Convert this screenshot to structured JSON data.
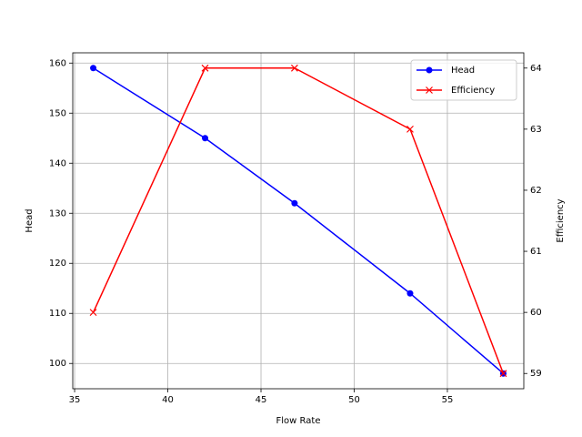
{
  "chart_data": {
    "type": "line",
    "xlabel": "Flow Rate",
    "ylabel": "Head",
    "y2label": "Efficiency",
    "x": [
      36,
      42,
      46.8,
      53,
      58
    ],
    "series": [
      {
        "name": "Head",
        "color": "#0000ff",
        "marker": "o",
        "values": [
          159,
          145,
          132,
          114,
          98
        ]
      },
      {
        "name": "Efficiency",
        "color": "#ff0000",
        "marker": "x",
        "axis": "y2",
        "values": [
          60,
          64,
          64,
          63,
          59
        ]
      }
    ],
    "xlim": [
      34.9,
      59.1
    ],
    "xticks": [
      35,
      40,
      45,
      50,
      55
    ],
    "ylim": [
      94.95,
      162.05
    ],
    "yticks": [
      100,
      110,
      120,
      130,
      140,
      150,
      160
    ],
    "y2lim": [
      58.75,
      64.25
    ],
    "y2ticks": [
      59,
      60,
      61,
      62,
      63,
      64
    ],
    "grid": true,
    "legend": "upper right"
  }
}
